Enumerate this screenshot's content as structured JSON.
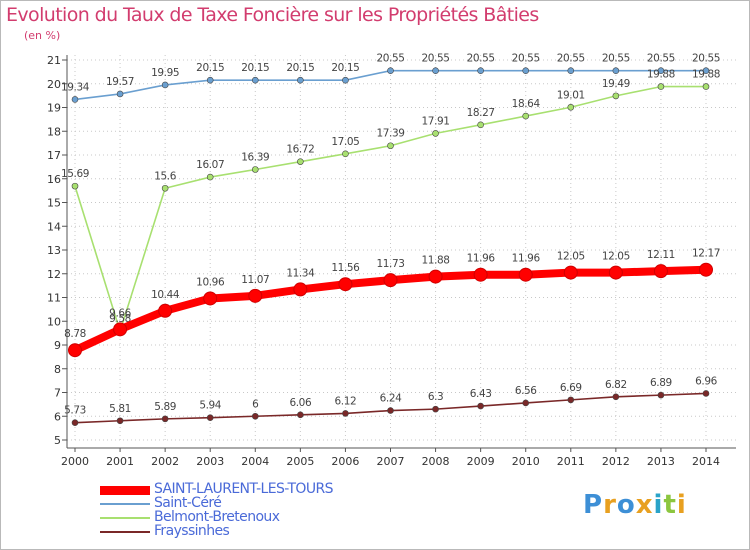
{
  "header": {
    "title": "Evolution du Taux de Taxe Foncière sur les Propriétés Bâties",
    "unit": "(en %)"
  },
  "logo": {
    "letters": [
      "P",
      "r",
      "o",
      "x",
      "i",
      "t",
      "i"
    ],
    "colors": [
      "#3d8fd6",
      "#e8a020",
      "#3d8fd6",
      "#e8a020",
      "#2aa3c8",
      "#8cc63f",
      "#e8a020"
    ]
  },
  "chart_data": {
    "type": "line",
    "title": "Evolution du Taux de Taxe Foncière sur les Propriétés Bâties",
    "ylabel": "(en %)",
    "xlabel": "",
    "ylim": [
      5,
      21
    ],
    "yticks": [
      "5",
      "6",
      "7",
      "8",
      "9",
      "10",
      "11",
      "12",
      "13",
      "14",
      "15",
      "16",
      "17",
      "18",
      "19",
      "20",
      "21"
    ],
    "categories": [
      "2000",
      "2001",
      "2002",
      "2003",
      "2004",
      "2005",
      "2006",
      "2007",
      "2008",
      "2009",
      "2010",
      "2011",
      "2012",
      "2013",
      "2014"
    ],
    "series": [
      {
        "name": "SAINT-LAURENT-LES-TOURS",
        "color": "#ff0000",
        "values": [
          8.78,
          9.66,
          10.44,
          10.96,
          11.07,
          11.34,
          11.56,
          11.73,
          11.88,
          11.96,
          11.96,
          12.05,
          12.05,
          12.11,
          12.17
        ],
        "labels": [
          "8.78",
          "9.66",
          "10.44",
          "10.96",
          "11.07",
          "11.34",
          "11.56",
          "11.73",
          "11.88",
          "11.96",
          "11.96",
          "12.05",
          "12.05",
          "12.11",
          "12.17"
        ]
      },
      {
        "name": "Saint-Céré",
        "color": "#6a9fd0",
        "values": [
          19.34,
          19.57,
          19.95,
          20.15,
          20.15,
          20.15,
          20.15,
          20.55,
          20.55,
          20.55,
          20.55,
          20.55,
          20.55,
          20.55,
          20.55
        ],
        "labels": [
          "19.34",
          "19.57",
          "19.95",
          "20.15",
          "20.15",
          "20.15",
          "20.15",
          "20.55",
          "20.55",
          "20.55",
          "20.55",
          "20.55",
          "20.55",
          "20.55",
          "20.55"
        ]
      },
      {
        "name": "Belmont-Bretenoux",
        "color": "#a8e070",
        "values": [
          15.69,
          9.58,
          15.6,
          16.07,
          16.39,
          16.72,
          17.05,
          17.39,
          17.91,
          18.27,
          18.64,
          19.01,
          19.49,
          19.88,
          19.88
        ],
        "labels": [
          "15.69",
          "9.58",
          "15.6",
          "16.07",
          "16.39",
          "16.72",
          "17.05",
          "17.39",
          "17.91",
          "18.27",
          "18.64",
          "19.01",
          "19.49",
          "19.88",
          "19.88"
        ]
      },
      {
        "name": "Frayssinhes",
        "color": "#7a2828",
        "values": [
          5.73,
          5.81,
          5.89,
          5.94,
          6.0,
          6.06,
          6.12,
          6.24,
          6.3,
          6.43,
          6.56,
          6.69,
          6.82,
          6.89,
          6.96
        ],
        "labels": [
          "5.73",
          "5.81",
          "5.89",
          "5.94",
          "6",
          "6.06",
          "6.12",
          "6.24",
          "6.3",
          "6.43",
          "6.56",
          "6.69",
          "6.82",
          "6.89",
          "6.96"
        ]
      }
    ],
    "legend": [
      "SAINT-LAURENT-LES-TOURS",
      "Saint-Céré",
      "Belmont-Bretenoux",
      "Frayssinhes"
    ],
    "legend_colors": [
      "#4a6ad8",
      "#4a6ad8",
      "#4a6ad8",
      "#4a6ad8"
    ]
  }
}
